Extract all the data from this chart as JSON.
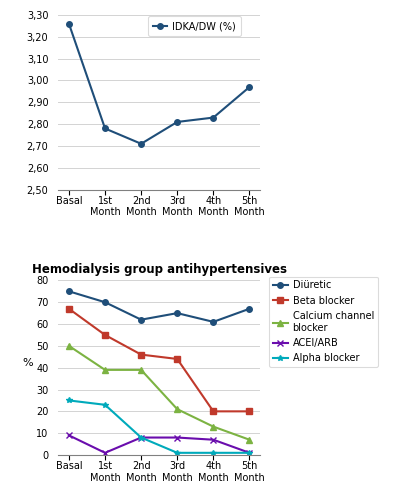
{
  "top_chart": {
    "x_labels": [
      "Basal",
      "1st\nMonth",
      "2nd\nMonth",
      "3rd\nMonth",
      "4th\nMonth",
      "5th\nMonth"
    ],
    "idka_dw": [
      3.26,
      2.78,
      2.71,
      2.81,
      2.83,
      2.97
    ],
    "ylim": [
      2.5,
      3.3
    ],
    "yticks": [
      2.5,
      2.6,
      2.7,
      2.8,
      2.9,
      3.0,
      3.1,
      3.2,
      3.3
    ],
    "line_color": "#1F4E79",
    "marker": "o",
    "legend_label": "IDKA/DW (%)"
  },
  "bottom_chart": {
    "title": "Hemodialysis group antihypertensives",
    "x_labels": [
      "Basal",
      "1st\nMonth",
      "2nd\nMonth",
      "3rd\nMonth",
      "4th\nMonth",
      "5th\nMonth"
    ],
    "ylim": [
      0,
      80
    ],
    "yticks": [
      0,
      10,
      20,
      30,
      40,
      50,
      60,
      70,
      80
    ],
    "ylabel": "%",
    "series": [
      {
        "label": "Diüretic",
        "values": [
          75,
          70,
          62,
          65,
          61,
          67
        ],
        "color": "#1F4E79",
        "marker": "o"
      },
      {
        "label": "Beta blocker",
        "values": [
          67,
          55,
          46,
          44,
          20,
          20
        ],
        "color": "#C0392B",
        "marker": "s"
      },
      {
        "label": "Calcium channel\nblocker",
        "values": [
          50,
          39,
          39,
          21,
          13,
          7
        ],
        "color": "#7CB342",
        "marker": "^"
      },
      {
        "label": "ACEI/ARB",
        "values": [
          9,
          1,
          8,
          8,
          7,
          1
        ],
        "color": "#6A0DAD",
        "marker": "x"
      },
      {
        "label": "Alpha blocker",
        "values": [
          25,
          23,
          8,
          1,
          1,
          1
        ],
        "color": "#00AABB",
        "marker": "*"
      }
    ]
  }
}
